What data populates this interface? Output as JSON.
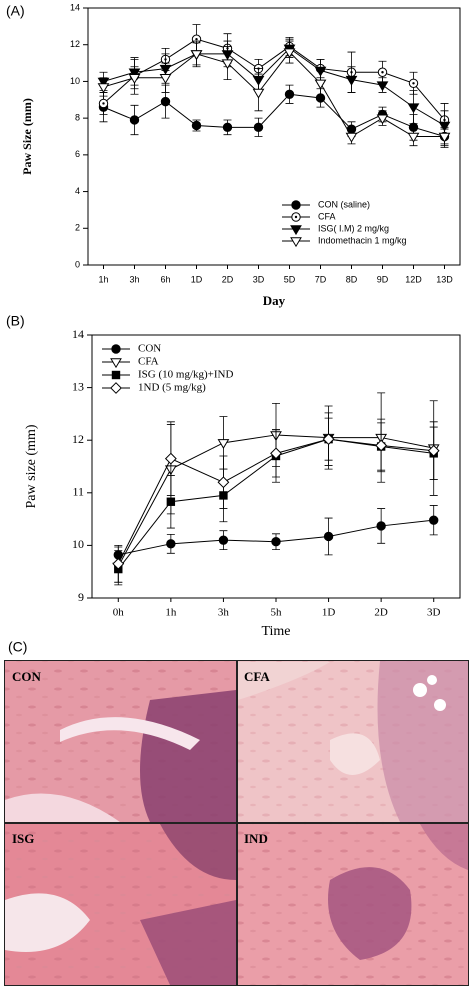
{
  "chart_data": [
    {
      "type": "line",
      "panel_label": "(A)",
      "xlabel": "Day",
      "ylabel": "Paw Size (mm)",
      "categories": [
        "1h",
        "3h",
        "6h",
        "1D",
        "2D",
        "3D",
        "5D",
        "7D",
        "8D",
        "9D",
        "12D",
        "13D"
      ],
      "ylim": [
        0,
        14
      ],
      "yticks": [
        0,
        2,
        4,
        6,
        8,
        10,
        12,
        14
      ],
      "legend": "lower right",
      "series": [
        {
          "name": "CON (saline)",
          "color": "#000000",
          "marker": "circle-filled",
          "values": [
            8.6,
            7.9,
            8.9,
            7.6,
            7.5,
            7.5,
            9.3,
            9.1,
            7.4,
            8.2,
            7.5,
            7.0
          ],
          "errors": [
            0.8,
            0.8,
            0.9,
            0.3,
            0.4,
            0.5,
            0.5,
            0.5,
            0.4,
            0.4,
            0.7,
            0.5
          ]
        },
        {
          "name": "CFA",
          "color": "#000000",
          "marker": "circle-dot",
          "values": [
            8.8,
            10.3,
            11.2,
            12.3,
            11.8,
            10.7,
            11.9,
            10.7,
            10.5,
            10.5,
            9.9,
            7.9
          ],
          "errors": [
            0.6,
            1.0,
            0.6,
            0.8,
            0.8,
            0.5,
            0.5,
            0.5,
            1.1,
            0.6,
            0.6,
            0.5
          ]
        },
        {
          "name": "ISG( I.M) 2 mg/kg",
          "color": "#000000",
          "marker": "tri-down-filled",
          "values": [
            10.0,
            10.5,
            10.7,
            11.5,
            11.5,
            10.1,
            11.8,
            10.6,
            10.1,
            9.8,
            8.6,
            7.6
          ],
          "errors": [
            0.5,
            0.7,
            0.8,
            0.7,
            0.7,
            0.6,
            0.5,
            0.6,
            0.7,
            0.4,
            0.9,
            1.2
          ]
        },
        {
          "name": "Indomethacin 1 mg/kg",
          "color": "#000000",
          "marker": "tri-down-open",
          "values": [
            9.7,
            10.2,
            10.2,
            11.5,
            11.0,
            9.4,
            11.6,
            9.9,
            7.0,
            8.0,
            7.0,
            7.0
          ],
          "errors": [
            0.5,
            0.6,
            0.8,
            0.6,
            0.9,
            1.0,
            0.6,
            0.7,
            0.4,
            0.4,
            0.5,
            0.4
          ]
        }
      ]
    },
    {
      "type": "line",
      "panel_label": "(B)",
      "xlabel": "Time",
      "ylabel": "Paw size (mm)",
      "categories": [
        "0h",
        "1h",
        "3h",
        "5h",
        "1D",
        "2D",
        "3D"
      ],
      "ylim": [
        9,
        14
      ],
      "yticks": [
        9,
        10,
        11,
        12,
        13,
        14
      ],
      "legend": "upper left",
      "series": [
        {
          "name": "CON",
          "color": "#000000",
          "marker": "circle-filled",
          "values": [
            9.82,
            10.03,
            10.1,
            10.07,
            10.17,
            10.37,
            10.48
          ],
          "errors": [
            0.15,
            0.18,
            0.18,
            0.15,
            0.35,
            0.33,
            0.28
          ]
        },
        {
          "name": "CFA",
          "color": "#000000",
          "marker": "tri-down-open",
          "values": [
            9.6,
            11.45,
            11.95,
            12.1,
            12.05,
            12.05,
            11.85
          ],
          "errors": [
            0.3,
            0.85,
            0.5,
            0.6,
            0.6,
            0.85,
            0.9
          ]
        },
        {
          "name": "ISG (10 mg/kg)+IND",
          "color": "#000000",
          "marker": "square-filled",
          "values": [
            9.55,
            10.83,
            10.95,
            11.7,
            12.02,
            11.88,
            11.75
          ],
          "errors": [
            0.3,
            0.5,
            0.5,
            0.5,
            0.4,
            0.45,
            0.5
          ]
        },
        {
          "name": "1ND (5 mg/kg)",
          "color": "#000000",
          "marker": "diamond-open",
          "values": [
            9.65,
            11.65,
            11.2,
            11.75,
            12.02,
            11.9,
            11.8
          ],
          "errors": [
            0.35,
            0.7,
            0.5,
            0.45,
            0.5,
            0.5,
            0.55
          ]
        }
      ]
    }
  ],
  "panel_c": {
    "panel_label": "(C)",
    "images": [
      {
        "label": "CON"
      },
      {
        "label": "CFA"
      },
      {
        "label": "ISG"
      },
      {
        "label": "IND"
      }
    ]
  }
}
